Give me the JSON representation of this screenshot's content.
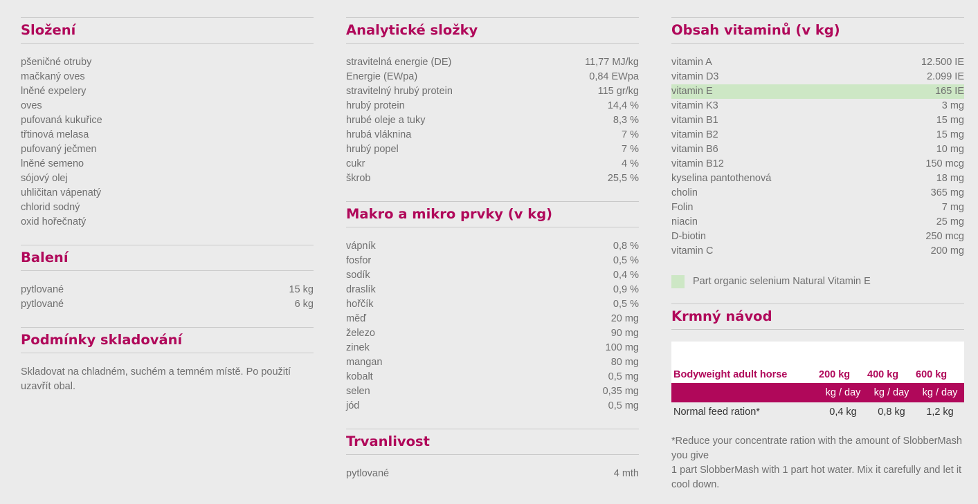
{
  "slozeni": {
    "title": "Složení",
    "items": [
      "pšeničné otruby",
      "mačkaný oves",
      "lněné expelery",
      "oves",
      "pufovaná kukuřice",
      "třtinová melasa",
      "pufovaný ječmen",
      "lněné semeno",
      "sójový olej",
      "uhličitan vápenatý",
      "chlorid sodný",
      "oxid hořečnatý"
    ]
  },
  "baleni": {
    "title": "Balení",
    "rows": [
      {
        "label": "pytlované",
        "value": "15 kg"
      },
      {
        "label": "pytlované",
        "value": "6 kg"
      }
    ]
  },
  "podminky": {
    "title": "Podmínky skladování",
    "text": "Skladovat na chladném, suchém a temném místě. Po použití uzavřít obal."
  },
  "analyticke": {
    "title": "Analytické složky",
    "rows": [
      {
        "label": "stravitelná energie (DE)",
        "value": "11,77 MJ/kg"
      },
      {
        "label": "Energie (EWpa)",
        "value": "0,84 EWpa"
      },
      {
        "label": "stravitelný hrubý protein",
        "value": "115 gr/kg"
      },
      {
        "label": "hrubý protein",
        "value": "14,4 %"
      },
      {
        "label": "hrubé oleje a tuky",
        "value": "8,3 %"
      },
      {
        "label": "hrubá vláknina",
        "value": "7 %"
      },
      {
        "label": "hrubý popel",
        "value": "7 %"
      },
      {
        "label": "cukr",
        "value": "4 %"
      },
      {
        "label": "škrob",
        "value": "25,5 %"
      }
    ]
  },
  "makro": {
    "title": "Makro a mikro prvky (v kg)",
    "rows": [
      {
        "label": "vápník",
        "value": "0,8 %"
      },
      {
        "label": "fosfor",
        "value": "0,5 %"
      },
      {
        "label": "sodík",
        "value": "0,4 %"
      },
      {
        "label": "draslík",
        "value": "0,9 %"
      },
      {
        "label": "hořčík",
        "value": "0,5 %"
      },
      {
        "label": "měď",
        "value": "20 mg"
      },
      {
        "label": "železo",
        "value": "90 mg"
      },
      {
        "label": "zinek",
        "value": "100 mg"
      },
      {
        "label": "mangan",
        "value": "80 mg"
      },
      {
        "label": "kobalt",
        "value": "0,5 mg"
      },
      {
        "label": "selen",
        "value": "0,35 mg"
      },
      {
        "label": "jód",
        "value": "0,5 mg"
      }
    ]
  },
  "trvanlivost": {
    "title": "Trvanlivost",
    "rows": [
      {
        "label": "pytlované",
        "value": "4 mth"
      }
    ]
  },
  "vitaminy": {
    "title": "Obsah vitaminů (v kg)",
    "highlight_color": "#cde7c5",
    "rows": [
      {
        "label": "vitamin A",
        "value": "12.500 IE"
      },
      {
        "label": "vitamin D3",
        "value": "2.099 IE"
      },
      {
        "label": "vitamin E",
        "value": "165 IE",
        "highlight": true
      },
      {
        "label": "vitamin K3",
        "value": "3 mg"
      },
      {
        "label": "vitamin B1",
        "value": "15 mg"
      },
      {
        "label": "vitamin B2",
        "value": "15 mg"
      },
      {
        "label": "vitamin B6",
        "value": "10 mg"
      },
      {
        "label": "vitamin B12",
        "value": "150 mcg"
      },
      {
        "label": "kyselina pantothenová",
        "value": "18 mg"
      },
      {
        "label": "cholin",
        "value": "365 mg"
      },
      {
        "label": "Folin",
        "value": "7 mg"
      },
      {
        "label": "niacin",
        "value": "25 mg"
      },
      {
        "label": "D-biotin",
        "value": "250 mcg"
      },
      {
        "label": "vitamin C",
        "value": "200 mg"
      }
    ],
    "legend": "Part organic selenium Natural Vitamin E"
  },
  "krmny": {
    "title": "Krmný návod",
    "header_label": "Bodyweight adult horse",
    "weights": [
      "200 kg",
      "400 kg",
      "600 kg"
    ],
    "units": [
      "kg / day",
      "kg / day",
      "kg / day"
    ],
    "row_label": "Normal feed ration*",
    "amounts": [
      "0,4 kg",
      "0,8 kg",
      "1,2 kg"
    ],
    "note1": "*Reduce your concentrate ration with the amount of SlobberMash you give",
    "note2": "1 part SlobberMash with 1 part hot water. Mix it carefully and let it cool down."
  },
  "brand_color": "#b0085a"
}
